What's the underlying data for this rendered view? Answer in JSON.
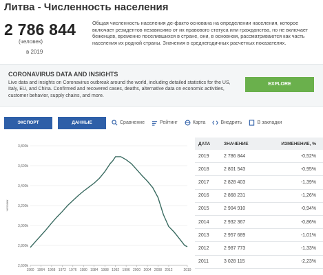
{
  "page": {
    "title": "Литва - Численность населения",
    "value": "2 786 844",
    "unit": "(человек)",
    "year_label": "в 2019",
    "description": "Общая численность населения де-факто основана на определении населения, которое включает резидентов независимо от их правового статуса или гражданства, но не включает беженцев, временно поселившихся в стране, они, в основном, рассматриваются как часть населения их родной страны. Значения в среднегодичных расчетных показателях."
  },
  "banner": {
    "title": "CORONAVIRUS DATA AND INSIGHTS",
    "text": "Live data and insights on Coronavirus outbreak around the world, including detailed statistics for the US, Italy, EU, and China. Confirmed and recovered cases, deaths, alternative data on economic activities, customer behavior, supply chains, and more.",
    "button": "EXPLORE"
  },
  "toolbar": {
    "export": "ЭКСПОРТ",
    "data": "ДАННЫЕ",
    "compare": "Сравнение",
    "rating": "Рейтинг",
    "map": "Карта",
    "embed": "Внедрить",
    "bookmark": "В закладки"
  },
  "colors": {
    "line": "#3a6b61",
    "button": "#2e5fa8",
    "explore": "#6ab04c"
  },
  "table": {
    "headers": [
      "ДАТА",
      "ЗНАЧЕНИЕ",
      "ИЗМЕНЕНИЕ, %"
    ],
    "rows": [
      [
        "2019",
        "2 786 844",
        "-0,52%"
      ],
      [
        "2018",
        "2 801 543",
        "-0,95%"
      ],
      [
        "2017",
        "2 828 403",
        "-1,39%"
      ],
      [
        "2016",
        "2 868 231",
        "-1,26%"
      ],
      [
        "2015",
        "2 904 910",
        "-0,94%"
      ],
      [
        "2014",
        "2 932 367",
        "-0,86%"
      ],
      [
        "2013",
        "2 957 689",
        "-1,01%"
      ],
      [
        "2012",
        "2 987 773",
        "-1,33%"
      ],
      [
        "2011",
        "3 028 115",
        "-2,23%"
      ]
    ]
  },
  "chart_data": {
    "type": "line",
    "ylabel": "человек",
    "ylim": [
      2600,
      3800
    ],
    "yticks": [
      "3,800k",
      "3,600k",
      "3,400k",
      "3,200k",
      "3,000k",
      "2,800k",
      "2,600k"
    ],
    "ytick_values": [
      3800,
      3600,
      3400,
      3200,
      3000,
      2800,
      2600
    ],
    "xticks": [
      "1960",
      "1964",
      "1968",
      "1972",
      "1976",
      "1980",
      "1984",
      "1988",
      "1992",
      "1996",
      "2000",
      "2004",
      "2008",
      "2012",
      "2019"
    ],
    "xlim": [
      1960,
      2019
    ],
    "grid": true,
    "series": [
      {
        "x": [
          1960,
          1962,
          1964,
          1966,
          1968,
          1970,
          1972,
          1974,
          1976,
          1978,
          1980,
          1982,
          1984,
          1986,
          1988,
          1990,
          1991,
          1992,
          1994,
          1996,
          1998,
          2000,
          2002,
          2004,
          2006,
          2008,
          2010,
          2012,
          2014,
          2016,
          2018,
          2019
        ],
        "y": [
          2780,
          2840,
          2900,
          2960,
          3025,
          3085,
          3140,
          3200,
          3250,
          3300,
          3345,
          3385,
          3425,
          3475,
          3540,
          3620,
          3650,
          3690,
          3690,
          3660,
          3620,
          3560,
          3500,
          3445,
          3380,
          3280,
          3110,
          2990,
          2935,
          2868,
          2801,
          2787
        ]
      }
    ]
  }
}
